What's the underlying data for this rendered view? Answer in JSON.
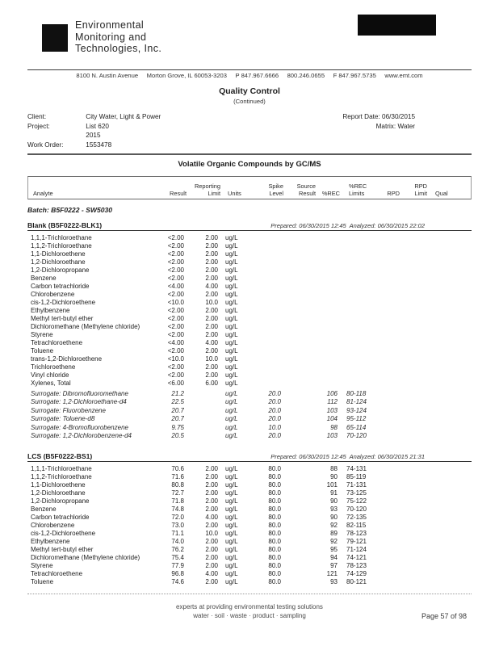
{
  "colors": {
    "ink": "#1c1c1c",
    "paper": "#ffffff"
  },
  "letterhead": {
    "company_lines": [
      "Environmental",
      "Monitoring and",
      "Technologies, Inc."
    ],
    "address": "8100 N. Austin Avenue     Morton Grove, IL 60053-3203     P 847.967.6666     800.246.0655     F 847.967.5735     www.emt.com"
  },
  "title": "Quality Control",
  "subtitle": "(Continued)",
  "info": {
    "client_label": "Client:",
    "client": "City Water, Light & Power",
    "project_label": "Project:",
    "project": "List 620",
    "project_line2": "2015",
    "work_order_label": "Work Order:",
    "work_order": "1553478",
    "report_date_label": "Report Date:",
    "report_date": "06/30/2015",
    "matrix_label": "Matrix:",
    "matrix": "Water"
  },
  "section_title": "Volatile Organic Compounds by GC/MS",
  "batch_title": "Batch: B5F0222 - SW5030",
  "table": {
    "columns": [
      "analyte",
      "result",
      "reporting_limit",
      "units",
      "spike_level",
      "source_result",
      "rec",
      "rec_limits",
      "rpd",
      "rpd_limit",
      "qual"
    ],
    "headers": [
      "Analyte",
      "Result",
      "Reporting\nLimit",
      "Units",
      "Spike\nLevel",
      "Source\nResult",
      "%REC",
      "%REC\nLimits",
      "RPD",
      "RPD\nLimit",
      "Qual"
    ]
  },
  "blank": {
    "title": "Blank (B5F0222-BLK1)",
    "prepared": "Prepared: 06/30/2015 12:45  Analyzed: 06/30/2015 22:02",
    "rows": [
      {
        "analyte": "1,1,1-Trichloroethane",
        "result": "<2.00",
        "reporting_limit": "2.00",
        "units": "ug/L"
      },
      {
        "analyte": "1,1,2-Trichloroethane",
        "result": "<2.00",
        "reporting_limit": "2.00",
        "units": "ug/L"
      },
      {
        "analyte": "1,1-Dichloroethene",
        "result": "<2.00",
        "reporting_limit": "2.00",
        "units": "ug/L"
      },
      {
        "analyte": "1,2-Dichloroethane",
        "result": "<2.00",
        "reporting_limit": "2.00",
        "units": "ug/L"
      },
      {
        "analyte": "1,2-Dichloropropane",
        "result": "<2.00",
        "reporting_limit": "2.00",
        "units": "ug/L"
      },
      {
        "analyte": "Benzene",
        "result": "<2.00",
        "reporting_limit": "2.00",
        "units": "ug/L"
      },
      {
        "analyte": "Carbon tetrachloride",
        "result": "<4.00",
        "reporting_limit": "4.00",
        "units": "ug/L"
      },
      {
        "analyte": "Chlorobenzene",
        "result": "<2.00",
        "reporting_limit": "2.00",
        "units": "ug/L"
      },
      {
        "analyte": "cis-1,2-Dichloroethene",
        "result": "<10.0",
        "reporting_limit": "10.0",
        "units": "ug/L"
      },
      {
        "analyte": "Ethylbenzene",
        "result": "<2.00",
        "reporting_limit": "2.00",
        "units": "ug/L"
      },
      {
        "analyte": "Methyl tert-butyl ether",
        "result": "<2.00",
        "reporting_limit": "2.00",
        "units": "ug/L"
      },
      {
        "analyte": "Dichloromethane (Methylene chloride)",
        "result": "<2.00",
        "reporting_limit": "2.00",
        "units": "ug/L"
      },
      {
        "analyte": "Styrene",
        "result": "<2.00",
        "reporting_limit": "2.00",
        "units": "ug/L"
      },
      {
        "analyte": "Tetrachloroethene",
        "result": "<4.00",
        "reporting_limit": "4.00",
        "units": "ug/L"
      },
      {
        "analyte": "Toluene",
        "result": "<2.00",
        "reporting_limit": "2.00",
        "units": "ug/L"
      },
      {
        "analyte": "trans-1,2-Dichloroethene",
        "result": "<10.0",
        "reporting_limit": "10.0",
        "units": "ug/L"
      },
      {
        "analyte": "Trichloroethene",
        "result": "<2.00",
        "reporting_limit": "2.00",
        "units": "ug/L"
      },
      {
        "analyte": "Vinyl chloride",
        "result": "<2.00",
        "reporting_limit": "2.00",
        "units": "ug/L"
      },
      {
        "analyte": "Xylenes, Total",
        "result": "<6.00",
        "reporting_limit": "6.00",
        "units": "ug/L"
      }
    ],
    "surrogates": [
      {
        "analyte": "Surrogate: Dibromofluoromethane",
        "result": "21.2",
        "units": "ug/L",
        "spike_level": "20.0",
        "rec": "106",
        "rec_limits": "80-118"
      },
      {
        "analyte": "Surrogate: 1,2-Dichloroethane-d4",
        "result": "22.5",
        "units": "ug/L",
        "spike_level": "20.0",
        "rec": "112",
        "rec_limits": "81-124"
      },
      {
        "analyte": "Surrogate: Fluorobenzene",
        "result": "20.7",
        "units": "ug/L",
        "spike_level": "20.0",
        "rec": "103",
        "rec_limits": "93-124"
      },
      {
        "analyte": "Surrogate: Toluene-d8",
        "result": "20.7",
        "units": "ug/L",
        "spike_level": "20.0",
        "rec": "104",
        "rec_limits": "95-112"
      },
      {
        "analyte": "Surrogate: 4-Bromofluorobenzene",
        "result": "9.75",
        "units": "ug/L",
        "spike_level": "10.0",
        "rec": "98",
        "rec_limits": "65-114"
      },
      {
        "analyte": "Surrogate: 1,2-Dichlorobenzene-d4",
        "result": "20.5",
        "units": "ug/L",
        "spike_level": "20.0",
        "rec": "103",
        "rec_limits": "70-120"
      }
    ]
  },
  "lcs": {
    "title": "LCS (B5F0222-BS1)",
    "prepared": "Prepared: 06/30/2015 12:45  Analyzed: 06/30/2015 21:31",
    "rows": [
      {
        "analyte": "1,1,1-Trichloroethane",
        "result": "70.6",
        "reporting_limit": "2.00",
        "units": "ug/L",
        "spike_level": "80.0",
        "rec": "88",
        "rec_limits": "74-131"
      },
      {
        "analyte": "1,1,2-Trichloroethane",
        "result": "71.6",
        "reporting_limit": "2.00",
        "units": "ug/L",
        "spike_level": "80.0",
        "rec": "90",
        "rec_limits": "85-119"
      },
      {
        "analyte": "1,1-Dichloroethene",
        "result": "80.8",
        "reporting_limit": "2.00",
        "units": "ug/L",
        "spike_level": "80.0",
        "rec": "101",
        "rec_limits": "71-131"
      },
      {
        "analyte": "1,2-Dichloroethane",
        "result": "72.7",
        "reporting_limit": "2.00",
        "units": "ug/L",
        "spike_level": "80.0",
        "rec": "91",
        "rec_limits": "73-125"
      },
      {
        "analyte": "1,2-Dichloropropane",
        "result": "71.8",
        "reporting_limit": "2.00",
        "units": "ug/L",
        "spike_level": "80.0",
        "rec": "90",
        "rec_limits": "75-122"
      },
      {
        "analyte": "Benzene",
        "result": "74.8",
        "reporting_limit": "2.00",
        "units": "ug/L",
        "spike_level": "80.0",
        "rec": "93",
        "rec_limits": "70-120"
      },
      {
        "analyte": "Carbon tetrachloride",
        "result": "72.0",
        "reporting_limit": "4.00",
        "units": "ug/L",
        "spike_level": "80.0",
        "rec": "90",
        "rec_limits": "72-135"
      },
      {
        "analyte": "Chlorobenzene",
        "result": "73.0",
        "reporting_limit": "2.00",
        "units": "ug/L",
        "spike_level": "80.0",
        "rec": "92",
        "rec_limits": "82-115"
      },
      {
        "analyte": "cis-1,2-Dichloroethene",
        "result": "71.1",
        "reporting_limit": "10.0",
        "units": "ug/L",
        "spike_level": "80.0",
        "rec": "89",
        "rec_limits": "78-123"
      },
      {
        "analyte": "Ethylbenzene",
        "result": "74.0",
        "reporting_limit": "2.00",
        "units": "ug/L",
        "spike_level": "80.0",
        "rec": "92",
        "rec_limits": "79-121"
      },
      {
        "analyte": "Methyl tert-butyl ether",
        "result": "76.2",
        "reporting_limit": "2.00",
        "units": "ug/L",
        "spike_level": "80.0",
        "rec": "95",
        "rec_limits": "71-124"
      },
      {
        "analyte": "Dichloromethane (Methylene chloride)",
        "result": "75.4",
        "reporting_limit": "2.00",
        "units": "ug/L",
        "spike_level": "80.0",
        "rec": "94",
        "rec_limits": "74-121"
      },
      {
        "analyte": "Styrene",
        "result": "77.9",
        "reporting_limit": "2.00",
        "units": "ug/L",
        "spike_level": "80.0",
        "rec": "97",
        "rec_limits": "78-123"
      },
      {
        "analyte": "Tetrachloroethene",
        "result": "96.8",
        "reporting_limit": "4.00",
        "units": "ug/L",
        "spike_level": "80.0",
        "rec": "121",
        "rec_limits": "74-129"
      },
      {
        "analyte": "Toluene",
        "result": "74.6",
        "reporting_limit": "2.00",
        "units": "ug/L",
        "spike_level": "80.0",
        "rec": "93",
        "rec_limits": "80-121"
      }
    ]
  },
  "footer": {
    "tagline1": "experts at providing environmental testing solutions",
    "tagline2": "water  ·  soil  ·  waste  ·  product  ·  sampling",
    "page": "Page 57 of 98"
  }
}
